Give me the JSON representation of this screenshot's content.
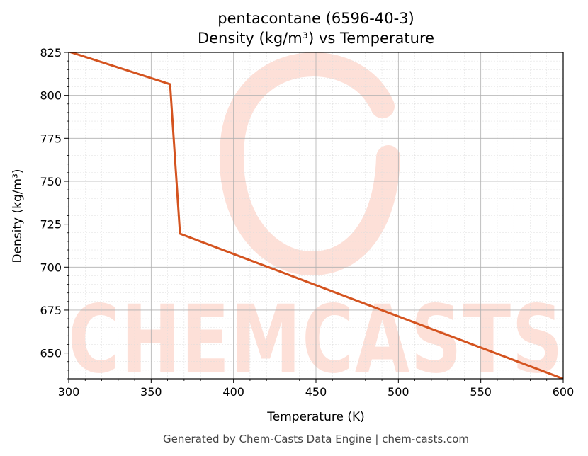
{
  "chart_data": {
    "type": "line",
    "title_lines": [
      "pentacontane (6596-40-3)",
      "Density (kg/m³) vs Temperature"
    ],
    "xlabel": "Temperature (K)",
    "ylabel": "Density (kg/m³)",
    "xlim": [
      300,
      600
    ],
    "ylim": [
      635,
      825
    ],
    "xticks": [
      300,
      350,
      400,
      450,
      500,
      550,
      600
    ],
    "yticks": [
      650,
      675,
      700,
      725,
      750,
      775,
      800,
      825
    ],
    "grid": true,
    "series": [
      {
        "color": "#d4531f",
        "x": [
          300,
          361.5,
          367.5,
          600
        ],
        "y": [
          825.5,
          806.5,
          719.5,
          635
        ]
      }
    ]
  },
  "watermark": {
    "text": "CHEMCASTS",
    "color": "#fde0d8"
  },
  "footer": "Generated by Chem-Casts Data Engine | chem-casts.com"
}
